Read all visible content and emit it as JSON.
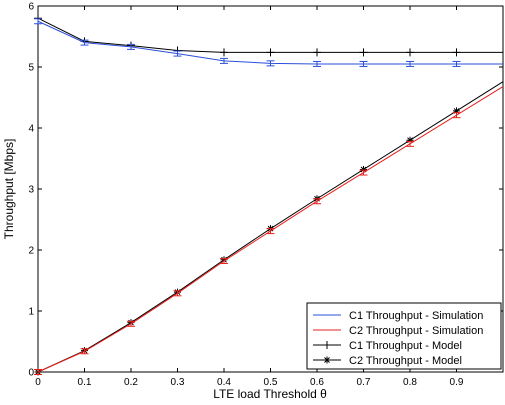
{
  "chart_data": {
    "type": "line",
    "title": "",
    "xlabel": "LTE load Threshold θ",
    "ylabel": "Throughput [Mbps]",
    "xlim": [
      0,
      1
    ],
    "ylim": [
      0,
      6
    ],
    "x_ticks": [
      "0",
      "0.1",
      "0.2",
      "0.3",
      "0.4",
      "0.5",
      "0.6",
      "0.7",
      "0.8",
      "0.9"
    ],
    "y_ticks": [
      "0",
      "1",
      "2",
      "3",
      "4",
      "5",
      "6"
    ],
    "grid": false,
    "legend_position": "bottom-right",
    "x": [
      0,
      0.1,
      0.2,
      0.3,
      0.4,
      0.5,
      0.6,
      0.7,
      0.8,
      0.9,
      1.0
    ],
    "series": [
      {
        "name": "C1 Throughput - Simulation",
        "color": "#2b4fd8",
        "marker": "errorbar",
        "values": [
          5.75,
          5.4,
          5.33,
          5.22,
          5.1,
          5.06,
          5.05,
          5.05,
          5.05,
          5.05,
          5.05
        ]
      },
      {
        "name": "C2 Throughput - Simulation",
        "color": "#e8201b",
        "marker": "errorbar",
        "values": [
          0.0,
          0.34,
          0.79,
          1.29,
          1.82,
          2.31,
          2.8,
          3.27,
          3.74,
          4.21,
          4.68
        ]
      },
      {
        "name": "C1 Throughput - Model",
        "color": "#000000",
        "marker": "plus",
        "values": [
          5.8,
          5.42,
          5.35,
          5.27,
          5.24,
          5.24,
          5.24,
          5.24,
          5.24,
          5.24,
          5.24
        ]
      },
      {
        "name": "C2 Throughput - Model",
        "color": "#000000",
        "marker": "star",
        "values": [
          0.0,
          0.35,
          0.81,
          1.31,
          1.84,
          2.35,
          2.84,
          3.32,
          3.8,
          4.28,
          4.76
        ]
      }
    ]
  }
}
